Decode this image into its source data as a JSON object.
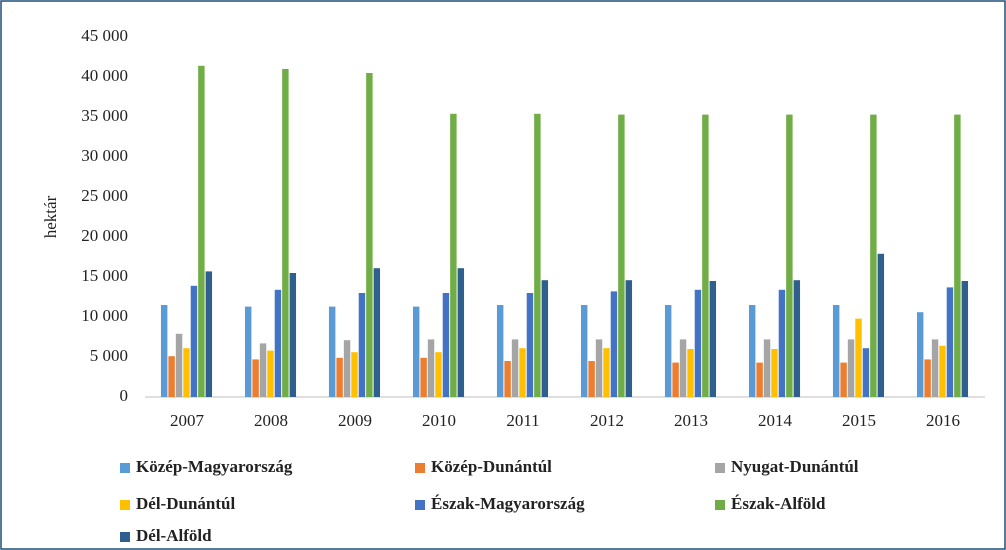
{
  "chart_data": {
    "type": "bar",
    "ylabel": "hektár",
    "categories": [
      "2007",
      "2008",
      "2009",
      "2010",
      "2011",
      "2012",
      "2013",
      "2014",
      "2015",
      "2016"
    ],
    "series": [
      {
        "name": "Közép-Magyarország",
        "color": "#5b9bd5",
        "values": [
          11500,
          11300,
          11300,
          11300,
          11500,
          11500,
          11500,
          11500,
          11500,
          10600
        ]
      },
      {
        "name": "Közép-Dunántúl",
        "color": "#ed7d31",
        "values": [
          5100,
          4700,
          4900,
          4900,
          4500,
          4500,
          4300,
          4300,
          4300,
          4700
        ]
      },
      {
        "name": "Nyugat-Dunántúl",
        "color": "#a5a5a5",
        "values": [
          7900,
          6700,
          7100,
          7200,
          7200,
          7200,
          7200,
          7200,
          7200,
          7200
        ]
      },
      {
        "name": "Dél-Dunántúl",
        "color": "#ffc000",
        "values": [
          6100,
          5800,
          5600,
          5600,
          6100,
          6100,
          6000,
          6000,
          9800,
          6400
        ]
      },
      {
        "name": "Észak-Magyarország",
        "color": "#4472c4",
        "values": [
          13900,
          13400,
          13000,
          13000,
          13000,
          13200,
          13400,
          13400,
          6100,
          13700
        ]
      },
      {
        "name": "Észak-Alföld",
        "color": "#70ad47",
        "values": [
          41400,
          41000,
          40500,
          35400,
          35400,
          35300,
          35300,
          35300,
          35300,
          35300
        ]
      },
      {
        "name": "Dél-Alföld",
        "color": "#2e5f8f",
        "values": [
          15700,
          15500,
          16100,
          16100,
          14600,
          14600,
          14500,
          14600,
          17900,
          14500
        ]
      }
    ],
    "ylim": [
      0,
      45000
    ],
    "yticks": [
      0,
      {
        "value": 5000,
        "label": "5 000"
      },
      {
        "value": 10000,
        "label": "10 000"
      },
      {
        "value": 15000,
        "label": "15 000"
      },
      {
        "value": 20000,
        "label": "20 000"
      },
      {
        "value": 25000,
        "label": "25 000"
      },
      {
        "value": 30000,
        "label": "30 000"
      },
      {
        "value": 35000,
        "label": "35 000"
      },
      {
        "value": 40000,
        "label": "40 000"
      },
      {
        "value": 45000,
        "label": "45 000"
      }
    ],
    "grid": false,
    "legend": "bottom"
  }
}
